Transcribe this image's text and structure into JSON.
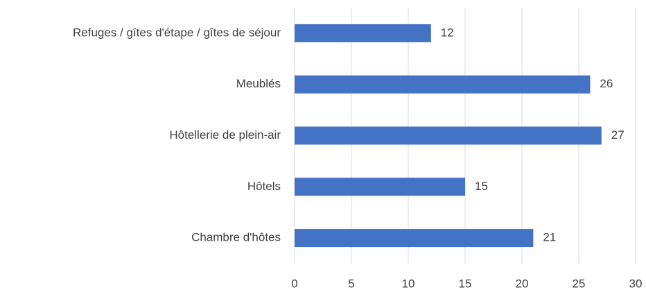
{
  "chart_data": {
    "type": "hbar",
    "categories": [
      "Refuges / gîtes d'étape / gîtes de séjour",
      "Meublés",
      "Hôtellerie de plein-air",
      "Hôtels",
      "Chambre d'hôtes"
    ],
    "values": [
      12,
      26,
      27,
      15,
      21
    ],
    "color": "#4472c4",
    "xlim": [
      0,
      30
    ],
    "xticks": [
      0,
      5,
      10,
      15,
      20,
      25,
      30
    ],
    "grid": true
  }
}
